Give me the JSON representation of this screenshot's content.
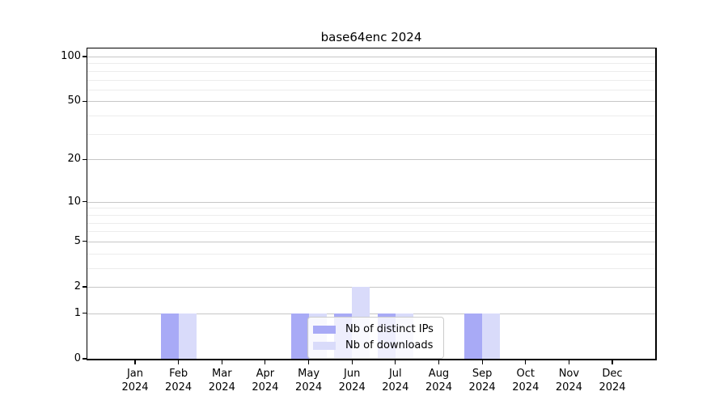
{
  "chart_data": {
    "type": "bar",
    "title": "base64enc 2024",
    "yscale": "log1p",
    "ylim": [
      0,
      113
    ],
    "grid": "on",
    "legend_position": "lower-center-inside",
    "yticks": [
      100,
      50,
      20,
      10,
      5,
      2,
      1,
      0
    ],
    "y_minor_gridlines": [
      3,
      4,
      6,
      7,
      8,
      9,
      30,
      40,
      60,
      70,
      80,
      90
    ],
    "categories": [
      {
        "month": "Jan",
        "year": "2024"
      },
      {
        "month": "Feb",
        "year": "2024"
      },
      {
        "month": "Mar",
        "year": "2024"
      },
      {
        "month": "Apr",
        "year": "2024"
      },
      {
        "month": "May",
        "year": "2024"
      },
      {
        "month": "Jun",
        "year": "2024"
      },
      {
        "month": "Jul",
        "year": "2024"
      },
      {
        "month": "Aug",
        "year": "2024"
      },
      {
        "month": "Sep",
        "year": "2024"
      },
      {
        "month": "Oct",
        "year": "2024"
      },
      {
        "month": "Nov",
        "year": "2024"
      },
      {
        "month": "Dec",
        "year": "2024"
      }
    ],
    "series": [
      {
        "name": "Nb of distinct IPs",
        "color": "#a8aaf6",
        "values": [
          0,
          1,
          0,
          0,
          1,
          1,
          1,
          0,
          1,
          0,
          0,
          0
        ]
      },
      {
        "name": "Nb of downloads",
        "color": "#d9dbfa",
        "values": [
          0,
          1,
          0,
          0,
          1,
          2,
          1,
          0,
          1,
          0,
          0,
          0
        ]
      }
    ],
    "colors": {
      "major_grid": "#c6c6c6",
      "minor_grid": "#ececec",
      "spine": "#000000",
      "background": "#ffffff"
    }
  }
}
